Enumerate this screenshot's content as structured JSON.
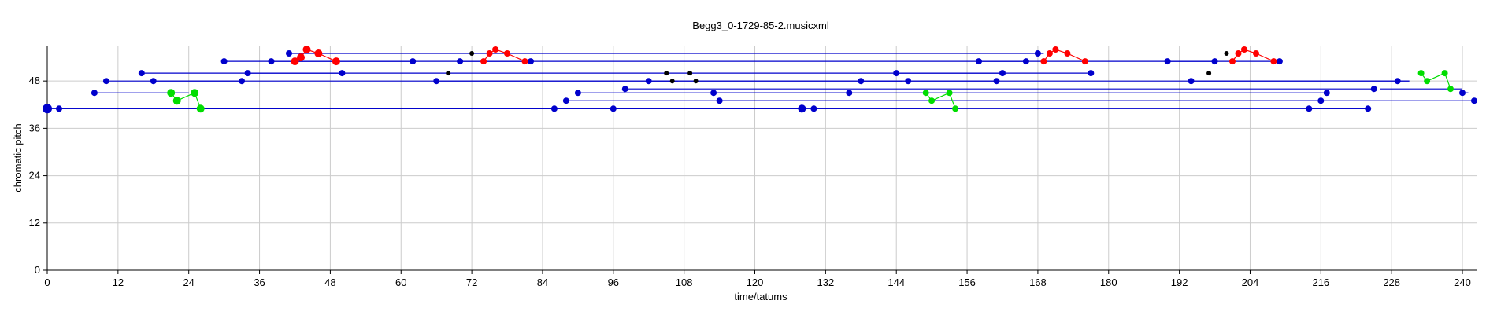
{
  "chart_data": {
    "type": "scatter",
    "title": "Begg3_0-1729-85-2.musicxml",
    "xlabel": "time/tatums",
    "ylabel": "chromatic pitch",
    "xlim": [
      0,
      242
    ],
    "ylim": [
      0,
      57
    ],
    "xticks": [
      0,
      12,
      24,
      36,
      48,
      60,
      72,
      84,
      96,
      108,
      120,
      132,
      144,
      156,
      168,
      180,
      192,
      204,
      216,
      228,
      240
    ],
    "yticks": [
      0,
      12,
      24,
      36,
      48
    ],
    "grid": true,
    "colors": {
      "blue": "#0000cc",
      "red": "#ff0000",
      "green": "#00dd00",
      "black": "#000000",
      "grid": "#cccccc"
    },
    "lines": [
      {
        "color": "blue",
        "points": [
          [
            0,
            41
          ],
          [
            128,
            41
          ]
        ]
      },
      {
        "color": "blue",
        "points": [
          [
            2,
            41
          ],
          [
            86,
            41
          ]
        ]
      },
      {
        "color": "blue",
        "points": [
          [
            26,
            41
          ],
          [
            154,
            41
          ]
        ]
      },
      {
        "color": "blue",
        "points": [
          [
            96,
            41
          ],
          [
            128,
            41
          ]
        ]
      },
      {
        "color": "blue",
        "points": [
          [
            130,
            41
          ],
          [
            224,
            41
          ]
        ]
      },
      {
        "color": "blue",
        "points": [
          [
            214,
            41
          ],
          [
            224,
            41
          ]
        ]
      },
      {
        "color": "blue",
        "points": [
          [
            8,
            45
          ],
          [
            24,
            45
          ]
        ]
      },
      {
        "color": "blue",
        "points": [
          [
            10,
            48
          ],
          [
            231,
            48
          ]
        ]
      },
      {
        "color": "blue",
        "points": [
          [
            16,
            50
          ],
          [
            177,
            50
          ]
        ]
      },
      {
        "color": "blue",
        "points": [
          [
            18,
            48
          ],
          [
            33,
            48
          ]
        ]
      },
      {
        "color": "blue",
        "points": [
          [
            30,
            53
          ],
          [
            209,
            53
          ]
        ]
      },
      {
        "color": "blue",
        "points": [
          [
            34,
            50
          ],
          [
            50,
            50
          ]
        ]
      },
      {
        "color": "blue",
        "points": [
          [
            38,
            53
          ],
          [
            62,
            53
          ]
        ]
      },
      {
        "color": "blue",
        "points": [
          [
            41,
            55
          ],
          [
            169,
            55
          ]
        ]
      },
      {
        "color": "blue",
        "points": [
          [
            66,
            48
          ],
          [
            161,
            48
          ]
        ]
      },
      {
        "color": "blue",
        "points": [
          [
            70,
            53
          ],
          [
            82,
            53
          ]
        ]
      },
      {
        "color": "blue",
        "points": [
          [
            88,
            43
          ],
          [
            216,
            43
          ]
        ]
      },
      {
        "color": "blue",
        "points": [
          [
            90,
            45
          ],
          [
            217,
            45
          ]
        ]
      },
      {
        "color": "blue",
        "points": [
          [
            98,
            46
          ],
          [
            225,
            46
          ]
        ]
      },
      {
        "color": "blue",
        "points": [
          [
            102,
            48
          ],
          [
            107,
            48
          ]
        ]
      },
      {
        "color": "blue",
        "points": [
          [
            113,
            45
          ],
          [
            136,
            45
          ]
        ]
      },
      {
        "color": "blue",
        "points": [
          [
            114,
            43
          ],
          [
            242,
            43
          ]
        ]
      },
      {
        "color": "blue",
        "points": [
          [
            138,
            48
          ],
          [
            145,
            48
          ]
        ]
      },
      {
        "color": "blue",
        "points": [
          [
            144,
            50
          ],
          [
            162,
            50
          ]
        ]
      },
      {
        "color": "blue",
        "points": [
          [
            158,
            53
          ],
          [
            166,
            53
          ]
        ]
      },
      {
        "color": "blue",
        "points": [
          [
            190,
            53
          ],
          [
            198,
            53
          ]
        ]
      },
      {
        "color": "blue",
        "points": [
          [
            194,
            48
          ],
          [
            231,
            48
          ]
        ]
      },
      {
        "color": "blue",
        "points": [
          [
            226,
            46
          ],
          [
            240,
            46
          ]
        ]
      },
      {
        "color": "blue",
        "points": [
          [
            240,
            45
          ],
          [
            241,
            45
          ]
        ]
      },
      {
        "color": "red",
        "points": [
          [
            42,
            53
          ],
          [
            43,
            54
          ],
          [
            44,
            56
          ],
          [
            46,
            55
          ],
          [
            49,
            53
          ]
        ]
      },
      {
        "color": "red",
        "points": [
          [
            74,
            53
          ],
          [
            75,
            55
          ],
          [
            76,
            56
          ],
          [
            78,
            55
          ],
          [
            81,
            53
          ]
        ]
      },
      {
        "color": "red",
        "points": [
          [
            169,
            53
          ],
          [
            170,
            55
          ],
          [
            171,
            56
          ],
          [
            173,
            55
          ],
          [
            176,
            53
          ]
        ]
      },
      {
        "color": "red",
        "points": [
          [
            201,
            53
          ],
          [
            202,
            55
          ],
          [
            203,
            56
          ],
          [
            205,
            55
          ],
          [
            208,
            53
          ]
        ]
      },
      {
        "color": "green",
        "points": [
          [
            21,
            45
          ],
          [
            22,
            43
          ],
          [
            25,
            45
          ],
          [
            26,
            41
          ]
        ]
      },
      {
        "color": "green",
        "points": [
          [
            149,
            45
          ],
          [
            150,
            43
          ],
          [
            153,
            45
          ],
          [
            154,
            41
          ]
        ]
      },
      {
        "color": "green",
        "points": [
          [
            233,
            50
          ],
          [
            234,
            48
          ],
          [
            237,
            50
          ],
          [
            238,
            46
          ]
        ]
      }
    ],
    "points": [
      {
        "x": 0,
        "y": 41,
        "color": "blue",
        "size": 6
      },
      {
        "x": 2,
        "y": 41,
        "color": "blue",
        "size": 4
      },
      {
        "x": 8,
        "y": 45,
        "color": "blue",
        "size": 4
      },
      {
        "x": 10,
        "y": 48,
        "color": "blue",
        "size": 4
      },
      {
        "x": 16,
        "y": 50,
        "color": "blue",
        "size": 4
      },
      {
        "x": 18,
        "y": 48,
        "color": "blue",
        "size": 4
      },
      {
        "x": 21,
        "y": 45,
        "color": "green",
        "size": 5
      },
      {
        "x": 22,
        "y": 43,
        "color": "green",
        "size": 5
      },
      {
        "x": 25,
        "y": 45,
        "color": "green",
        "size": 5
      },
      {
        "x": 26,
        "y": 41,
        "color": "green",
        "size": 5
      },
      {
        "x": 30,
        "y": 53,
        "color": "blue",
        "size": 4
      },
      {
        "x": 33,
        "y": 48,
        "color": "blue",
        "size": 4
      },
      {
        "x": 34,
        "y": 50,
        "color": "blue",
        "size": 4
      },
      {
        "x": 38,
        "y": 53,
        "color": "blue",
        "size": 4
      },
      {
        "x": 41,
        "y": 55,
        "color": "blue",
        "size": 4
      },
      {
        "x": 42,
        "y": 53,
        "color": "red",
        "size": 5
      },
      {
        "x": 43,
        "y": 54,
        "color": "red",
        "size": 5
      },
      {
        "x": 44,
        "y": 56,
        "color": "red",
        "size": 5
      },
      {
        "x": 46,
        "y": 55,
        "color": "red",
        "size": 5
      },
      {
        "x": 49,
        "y": 53,
        "color": "red",
        "size": 5
      },
      {
        "x": 50,
        "y": 50,
        "color": "blue",
        "size": 4
      },
      {
        "x": 62,
        "y": 53,
        "color": "blue",
        "size": 4
      },
      {
        "x": 66,
        "y": 48,
        "color": "blue",
        "size": 4
      },
      {
        "x": 68,
        "y": 50,
        "color": "black",
        "size": 3
      },
      {
        "x": 70,
        "y": 53,
        "color": "blue",
        "size": 4
      },
      {
        "x": 72,
        "y": 55,
        "color": "black",
        "size": 3
      },
      {
        "x": 74,
        "y": 53,
        "color": "red",
        "size": 4
      },
      {
        "x": 75,
        "y": 55,
        "color": "red",
        "size": 4
      },
      {
        "x": 76,
        "y": 56,
        "color": "red",
        "size": 4
      },
      {
        "x": 78,
        "y": 55,
        "color": "red",
        "size": 4
      },
      {
        "x": 81,
        "y": 53,
        "color": "red",
        "size": 4
      },
      {
        "x": 82,
        "y": 53,
        "color": "blue",
        "size": 4
      },
      {
        "x": 86,
        "y": 41,
        "color": "blue",
        "size": 4
      },
      {
        "x": 88,
        "y": 43,
        "color": "blue",
        "size": 4
      },
      {
        "x": 90,
        "y": 45,
        "color": "blue",
        "size": 4
      },
      {
        "x": 96,
        "y": 41,
        "color": "blue",
        "size": 4
      },
      {
        "x": 98,
        "y": 46,
        "color": "blue",
        "size": 4
      },
      {
        "x": 102,
        "y": 48,
        "color": "blue",
        "size": 4
      },
      {
        "x": 105,
        "y": 50,
        "color": "black",
        "size": 3
      },
      {
        "x": 106,
        "y": 48,
        "color": "black",
        "size": 3
      },
      {
        "x": 109,
        "y": 50,
        "color": "black",
        "size": 3
      },
      {
        "x": 110,
        "y": 48,
        "color": "black",
        "size": 3
      },
      {
        "x": 113,
        "y": 45,
        "color": "blue",
        "size": 4
      },
      {
        "x": 114,
        "y": 43,
        "color": "blue",
        "size": 4
      },
      {
        "x": 128,
        "y": 41,
        "color": "blue",
        "size": 5
      },
      {
        "x": 130,
        "y": 41,
        "color": "blue",
        "size": 4
      },
      {
        "x": 136,
        "y": 45,
        "color": "blue",
        "size": 4
      },
      {
        "x": 138,
        "y": 48,
        "color": "blue",
        "size": 4
      },
      {
        "x": 144,
        "y": 50,
        "color": "blue",
        "size": 4
      },
      {
        "x": 146,
        "y": 48,
        "color": "blue",
        "size": 4
      },
      {
        "x": 149,
        "y": 45,
        "color": "green",
        "size": 4
      },
      {
        "x": 150,
        "y": 43,
        "color": "green",
        "size": 4
      },
      {
        "x": 153,
        "y": 45,
        "color": "green",
        "size": 4
      },
      {
        "x": 154,
        "y": 41,
        "color": "green",
        "size": 4
      },
      {
        "x": 158,
        "y": 53,
        "color": "blue",
        "size": 4
      },
      {
        "x": 161,
        "y": 48,
        "color": "blue",
        "size": 4
      },
      {
        "x": 162,
        "y": 50,
        "color": "blue",
        "size": 4
      },
      {
        "x": 166,
        "y": 53,
        "color": "blue",
        "size": 4
      },
      {
        "x": 168,
        "y": 55,
        "color": "blue",
        "size": 4
      },
      {
        "x": 169,
        "y": 53,
        "color": "red",
        "size": 4
      },
      {
        "x": 170,
        "y": 55,
        "color": "red",
        "size": 4
      },
      {
        "x": 171,
        "y": 56,
        "color": "red",
        "size": 4
      },
      {
        "x": 173,
        "y": 55,
        "color": "red",
        "size": 4
      },
      {
        "x": 176,
        "y": 53,
        "color": "red",
        "size": 4
      },
      {
        "x": 177,
        "y": 50,
        "color": "blue",
        "size": 4
      },
      {
        "x": 190,
        "y": 53,
        "color": "blue",
        "size": 4
      },
      {
        "x": 194,
        "y": 48,
        "color": "blue",
        "size": 4
      },
      {
        "x": 197,
        "y": 50,
        "color": "black",
        "size": 3
      },
      {
        "x": 198,
        "y": 53,
        "color": "blue",
        "size": 4
      },
      {
        "x": 200,
        "y": 55,
        "color": "black",
        "size": 3
      },
      {
        "x": 201,
        "y": 53,
        "color": "red",
        "size": 4
      },
      {
        "x": 202,
        "y": 55,
        "color": "red",
        "size": 4
      },
      {
        "x": 203,
        "y": 56,
        "color": "red",
        "size": 4
      },
      {
        "x": 205,
        "y": 55,
        "color": "red",
        "size": 4
      },
      {
        "x": 208,
        "y": 53,
        "color": "red",
        "size": 4
      },
      {
        "x": 209,
        "y": 53,
        "color": "blue",
        "size": 4
      },
      {
        "x": 214,
        "y": 41,
        "color": "blue",
        "size": 4
      },
      {
        "x": 216,
        "y": 43,
        "color": "blue",
        "size": 4
      },
      {
        "x": 217,
        "y": 45,
        "color": "blue",
        "size": 4
      },
      {
        "x": 224,
        "y": 41,
        "color": "blue",
        "size": 4
      },
      {
        "x": 225,
        "y": 46,
        "color": "blue",
        "size": 4
      },
      {
        "x": 229,
        "y": 48,
        "color": "blue",
        "size": 4
      },
      {
        "x": 233,
        "y": 50,
        "color": "green",
        "size": 4
      },
      {
        "x": 234,
        "y": 48,
        "color": "green",
        "size": 4
      },
      {
        "x": 237,
        "y": 50,
        "color": "green",
        "size": 4
      },
      {
        "x": 238,
        "y": 46,
        "color": "green",
        "size": 4
      },
      {
        "x": 240,
        "y": 45,
        "color": "blue",
        "size": 4
      },
      {
        "x": 242,
        "y": 43,
        "color": "blue",
        "size": 4
      }
    ]
  }
}
